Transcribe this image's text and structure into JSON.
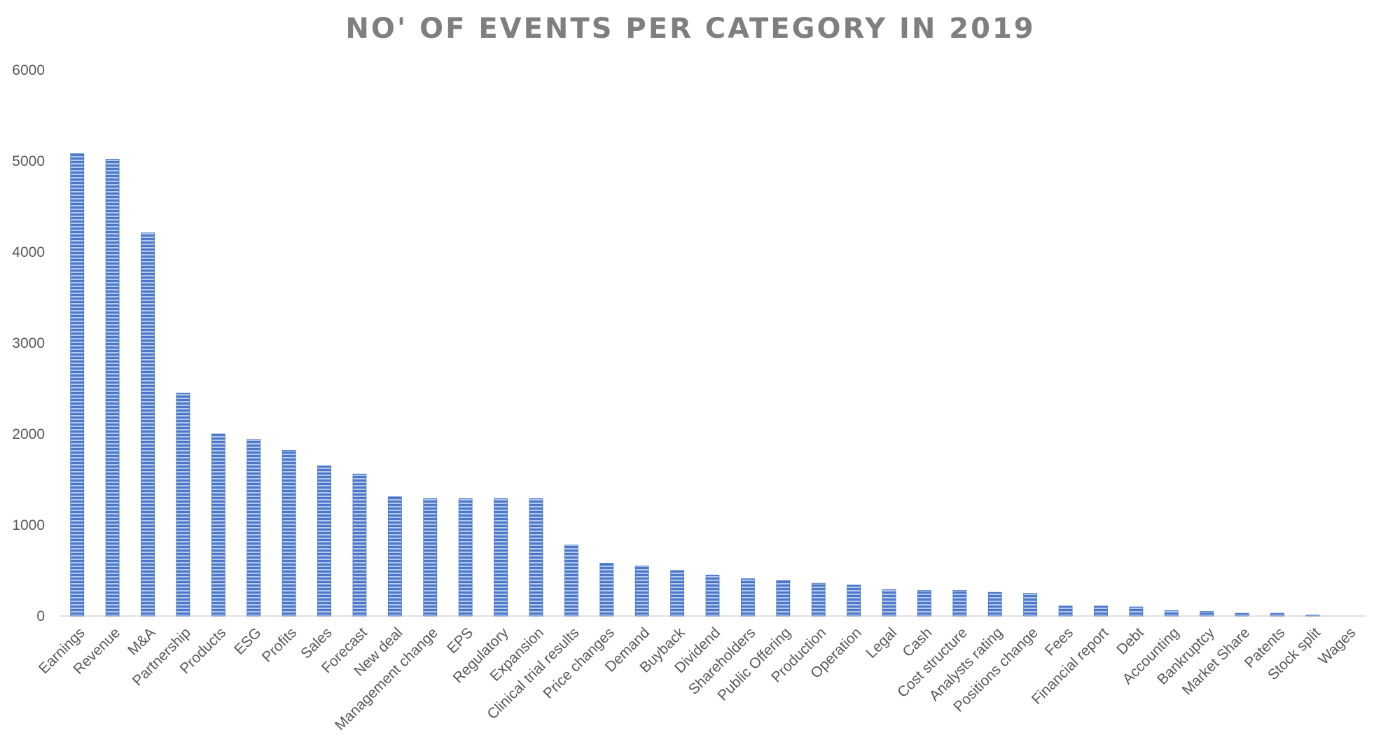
{
  "chart_data": {
    "type": "bar",
    "title": "NO' OF EVENTS PER CATEGORY IN 2019",
    "xlabel": "",
    "ylabel": "",
    "ylim": [
      0,
      6000
    ],
    "yticks": [
      "0",
      "1000",
      "2000",
      "3000",
      "4000",
      "5000",
      "6000"
    ],
    "grid": false,
    "legend": "none",
    "bar_color": "#4472c4",
    "categories": [
      "Earnings",
      "Revenue",
      "M&A",
      "Partnership",
      "Products",
      "ESG",
      "Profits",
      "Sales",
      "Forecast",
      "New deal",
      "Management change",
      "EPS",
      "Regulatory",
      "Expansion",
      "Clinical trial results",
      "Price changes",
      "Demand",
      "Buyback",
      "Dividend",
      "Shareholders",
      "Public Offering",
      "Production",
      "Operation",
      "Legal",
      "Cash",
      "Cost structure",
      "Analysts rating",
      "Positions change",
      "Fees",
      "Financial report",
      "Debt",
      "Accounting",
      "Bankruptcy",
      "Market Share",
      "Patents",
      "Stock split",
      "Wages"
    ],
    "values": [
      5080,
      5020,
      4210,
      2450,
      2000,
      1940,
      1820,
      1650,
      1560,
      1310,
      1290,
      1290,
      1290,
      1290,
      780,
      580,
      550,
      500,
      450,
      410,
      390,
      360,
      340,
      290,
      280,
      280,
      260,
      250,
      110,
      110,
      100,
      60,
      50,
      30,
      30,
      10,
      0
    ]
  }
}
